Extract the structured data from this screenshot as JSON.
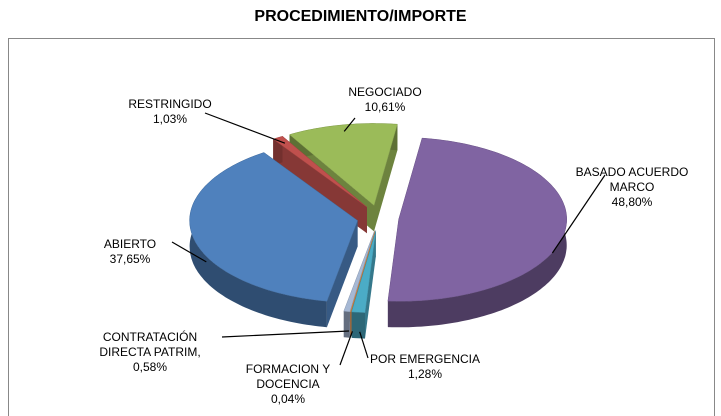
{
  "chart_data": {
    "type": "pie3d",
    "title": "PROCEDIMIENTO/IMPORTE",
    "categories": [
      "BASADO ACUERDO MARCO",
      "POR EMERGENCIA",
      "FORMACION Y DOCENCIA",
      "CONTRATACIÓN DIRECTA PATRIM,",
      "ABIERTO",
      "RESTRINGIDO",
      "NEGOCIADO"
    ],
    "values": [
      48.8,
      1.28,
      0.04,
      0.58,
      37.65,
      1.03,
      10.61
    ],
    "value_labels": [
      "48,80%",
      "1,28%",
      "0,04%",
      "0,58%",
      "37,65%",
      "1,03%",
      "10,61%"
    ],
    "colors": [
      "#8064a2",
      "#4bacc6",
      "#f79646",
      "#a6b8d4",
      "#4f81bd",
      "#c0504d",
      "#9bbb59"
    ]
  }
}
